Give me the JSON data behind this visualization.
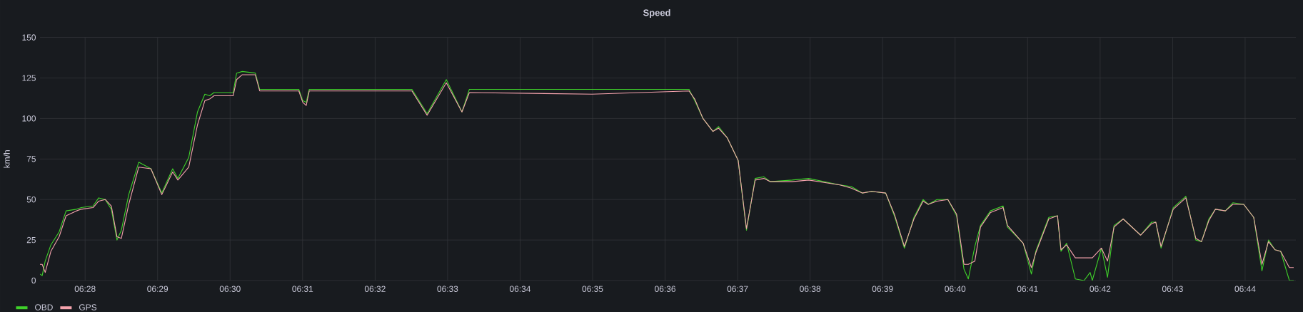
{
  "chart_data": {
    "type": "line",
    "title": "Speed",
    "ylabel": "km/h",
    "xlim": [
      6.4563,
      6.745
    ],
    "ylim": [
      0,
      150
    ],
    "xticks": [
      {
        "value": 6.466667,
        "label": "06:28"
      },
      {
        "value": 6.483333,
        "label": "06:29"
      },
      {
        "value": 6.5,
        "label": "06:30"
      },
      {
        "value": 6.516667,
        "label": "06:31"
      },
      {
        "value": 6.533333,
        "label": "06:32"
      },
      {
        "value": 6.55,
        "label": "06:33"
      },
      {
        "value": 6.566667,
        "label": "06:34"
      },
      {
        "value": 6.583333,
        "label": "06:35"
      },
      {
        "value": 6.6,
        "label": "06:36"
      },
      {
        "value": 6.616667,
        "label": "06:37"
      },
      {
        "value": 6.633333,
        "label": "06:38"
      },
      {
        "value": 6.65,
        "label": "06:39"
      },
      {
        "value": 6.666667,
        "label": "06:40"
      },
      {
        "value": 6.683333,
        "label": "06:41"
      },
      {
        "value": 6.7,
        "label": "06:42"
      },
      {
        "value": 6.716667,
        "label": "06:43"
      },
      {
        "value": 6.733333,
        "label": "06:44"
      }
    ],
    "yticks": [
      0,
      25,
      50,
      75,
      100,
      125,
      150
    ],
    "grid": true,
    "legend": "bottom",
    "x": [
      6.4563,
      6.4568,
      6.4575,
      6.4588,
      6.4607,
      6.4623,
      6.4647,
      6.4658,
      6.4685,
      6.4698,
      6.4713,
      6.4727,
      6.474,
      6.475,
      6.4767,
      6.479,
      6.4818,
      6.4843,
      6.4868,
      6.488,
      6.4905,
      6.4925,
      6.4942,
      6.4953,
      6.4963,
      6.5007,
      6.5015,
      6.5028,
      6.5058,
      6.5068,
      6.5158,
      6.5167,
      6.5175,
      6.5182,
      6.5418,
      6.5453,
      6.5497,
      6.5533,
      6.555,
      6.5832,
      6.6055,
      6.6068,
      6.6087,
      6.611,
      6.6123,
      6.6143,
      6.6168,
      6.6187,
      6.6207,
      6.6227,
      6.6242,
      6.6292,
      6.633,
      6.6402,
      6.6428,
      6.6453,
      6.6475,
      6.6507,
      6.6527,
      6.655,
      6.6572,
      6.6593,
      6.6605,
      6.6625,
      6.665,
      6.667,
      6.6687,
      6.6697,
      6.6712,
      6.6725,
      6.6748,
      6.6777,
      6.6787,
      6.6823,
      6.6842,
      6.6852,
      6.6882,
      6.6902,
      6.691,
      6.6923,
      6.6943,
      6.6963,
      6.6977,
      6.6982,
      6.7003,
      6.7017,
      6.7032,
      6.7053,
      6.7093,
      6.7118,
      6.7128,
      6.714,
      6.7168,
      6.7197,
      6.722,
      6.7233,
      6.725,
      6.7265,
      6.7288,
      6.7305,
      6.733,
      6.7353,
      6.7372,
      6.7387,
      6.7402,
      6.7415,
      6.7435,
      6.7445
    ],
    "series": [
      {
        "name": "OBD",
        "color": "#3fd12a",
        "values": [
          4,
          3,
          12,
          22,
          30,
          43,
          44,
          45,
          46,
          51,
          50,
          44,
          25,
          31,
          53,
          73,
          69,
          54,
          69,
          63,
          76,
          104,
          115,
          114,
          116,
          116,
          128,
          129,
          128,
          118,
          118,
          111,
          110,
          118,
          118,
          103,
          124,
          104,
          118,
          118,
          118,
          111,
          100,
          92,
          95,
          88,
          74,
          31,
          63,
          64,
          61,
          62,
          63,
          59,
          58,
          54,
          55,
          54,
          40,
          20,
          39,
          50,
          47,
          50,
          50,
          40,
          7,
          1,
          21,
          34,
          43,
          46,
          33,
          23,
          4,
          18,
          39,
          40,
          18,
          23,
          1,
          0,
          5,
          0,
          20,
          2,
          34,
          38,
          28,
          36,
          36,
          20,
          45,
          52,
          25,
          24,
          38,
          44,
          43,
          48,
          47,
          39,
          6,
          25,
          19,
          18,
          0,
          0
        ]
      },
      {
        "name": "GPS",
        "color": "#f5a3ad",
        "values": [
          10,
          10,
          5,
          18,
          27,
          40,
          43,
          44,
          45,
          49,
          50,
          46,
          27,
          26,
          47,
          70,
          69,
          53,
          67,
          62,
          70,
          96,
          111,
          112,
          114,
          114,
          124,
          127,
          127,
          117,
          117,
          110,
          108,
          117,
          117,
          102,
          122,
          104,
          116,
          115,
          117,
          112,
          100,
          92,
          94,
          88,
          74,
          32,
          62,
          63,
          61,
          61,
          62,
          59,
          57,
          54,
          55,
          54,
          41,
          21,
          38,
          49,
          47,
          49,
          50,
          41,
          10,
          10,
          12,
          33,
          42,
          45,
          34,
          23,
          8,
          17,
          38,
          40,
          19,
          22,
          14,
          14,
          14,
          14,
          20,
          12,
          33,
          38,
          28,
          35,
          36,
          21,
          44,
          51,
          26,
          24,
          37,
          44,
          43,
          47,
          47,
          39,
          10,
          24,
          19,
          18,
          8,
          8
        ]
      }
    ]
  }
}
